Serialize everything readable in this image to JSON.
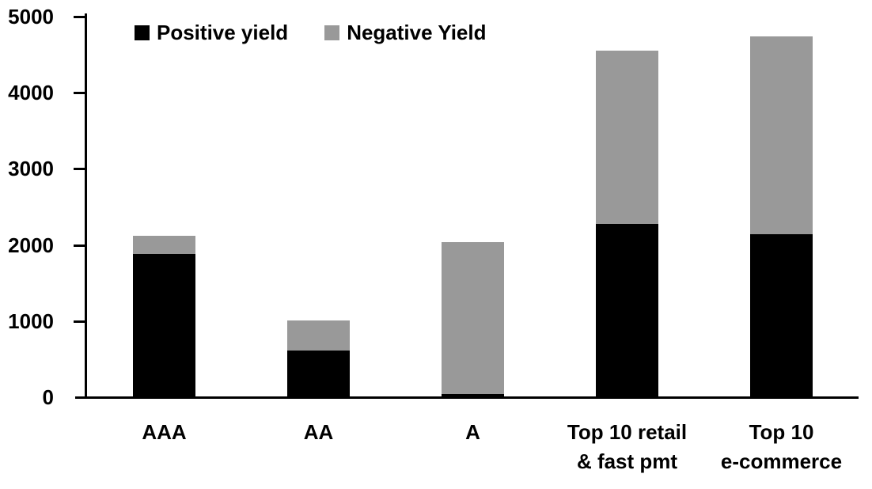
{
  "chart_data": {
    "type": "bar",
    "stacked": true,
    "title": "",
    "xlabel": "",
    "ylabel": "",
    "categories": [
      "AAA",
      "AA",
      "A",
      "Top 10 retail\n& fast pmt",
      "Top 10\ne-commerce"
    ],
    "series": [
      {
        "name": "Positive yield",
        "color": "#000000",
        "values": [
          1880,
          615,
          40,
          2280,
          2140
        ]
      },
      {
        "name": "Negative Yield",
        "color": "#999999",
        "values": [
          240,
          390,
          2000,
          2270,
          2600
        ]
      }
    ],
    "ylim": [
      0,
      5000
    ],
    "yticks": [
      0,
      1000,
      2000,
      3000,
      4000,
      5000
    ],
    "grid": false,
    "legend_position": "top-left-inside",
    "axis_color": "#000000",
    "background_color": "#ffffff"
  }
}
